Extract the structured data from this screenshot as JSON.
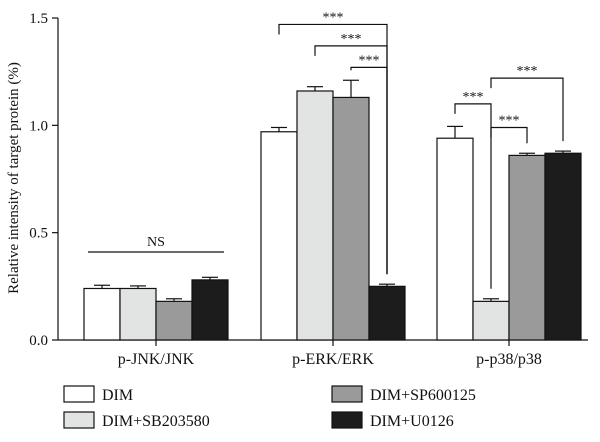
{
  "chart_data": {
    "type": "bar",
    "title": "",
    "xlabel": "",
    "ylabel": "Relative intensity of target protein (%)",
    "ylim": [
      0,
      1.5
    ],
    "yticks": [
      "0.0",
      "0.5",
      "1.0",
      "1.5"
    ],
    "categories": [
      "p-JNK/JNK",
      "p-ERK/ERK",
      "p-p38/p38"
    ],
    "series": [
      {
        "name": "DIM",
        "values": [
          0.24,
          0.97,
          0.94
        ],
        "errors": [
          0.015,
          0.02,
          0.055
        ],
        "color": "#ffffff"
      },
      {
        "name": "DIM+SB203580",
        "values": [
          0.24,
          1.16,
          0.18
        ],
        "errors": [
          0.012,
          0.02,
          0.012
        ],
        "color": "#e2e4e3"
      },
      {
        "name": "DIM+SP600125",
        "values": [
          0.18,
          1.13,
          0.86
        ],
        "errors": [
          0.012,
          0.08,
          0.01
        ],
        "color": "#9a9a9a"
      },
      {
        "name": "DIM+U0126",
        "values": [
          0.28,
          0.25,
          0.87
        ],
        "errors": [
          0.012,
          0.01,
          0.01
        ],
        "color": "#1c1c1c"
      }
    ],
    "grid": false,
    "legend_position": "bottom",
    "annotations": [
      {
        "text": "NS",
        "group": 0,
        "from": 0,
        "to": 3,
        "y": 0.41
      },
      {
        "text": "***",
        "group": 1,
        "from": 0,
        "to": 3,
        "y": 1.47
      },
      {
        "text": "***",
        "group": 1,
        "from": 1,
        "to": 3,
        "y": 1.37
      },
      {
        "text": "***",
        "group": 1,
        "from": 2,
        "to": 3,
        "y": 1.27
      },
      {
        "text": "***",
        "group": 2,
        "from": 0,
        "to": 1,
        "y": 1.1
      },
      {
        "text": "***",
        "group": 2,
        "from": 1,
        "to": 2,
        "y": 0.99
      },
      {
        "text": "***",
        "group": 2,
        "from": 1,
        "to": 3,
        "y": 1.22
      }
    ]
  }
}
